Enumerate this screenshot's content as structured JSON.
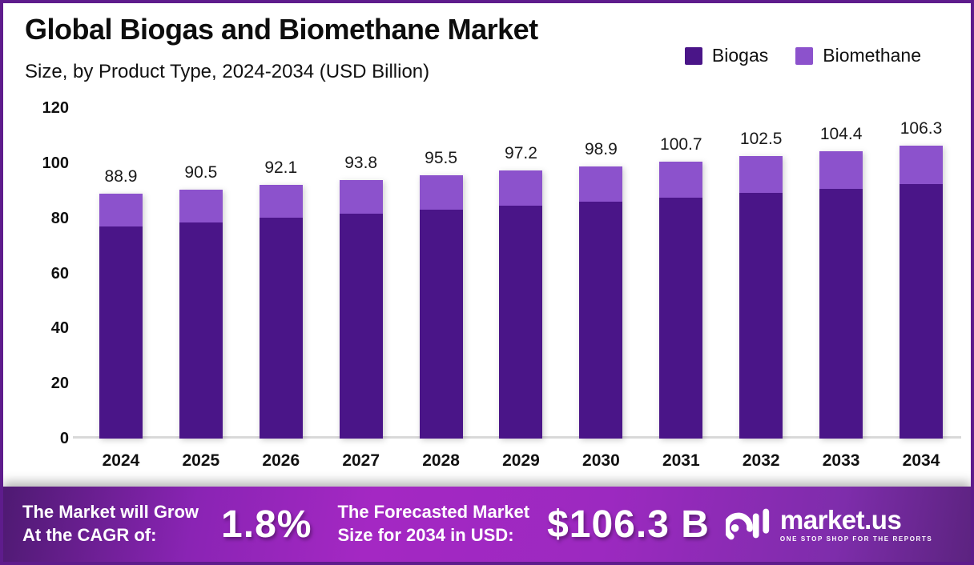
{
  "header": {
    "title": "Global Biogas and Biomethane Market",
    "subtitle": "Size, by Product Type, 2024-2034 (USD Billion)"
  },
  "legend": {
    "items": [
      {
        "label": "Biogas",
        "color": "#4a1588"
      },
      {
        "label": "Biomethane",
        "color": "#8c52cc"
      }
    ]
  },
  "chart_data": {
    "type": "bar",
    "stacked": true,
    "title": "Global Biogas and Biomethane Market Size, by Product Type, 2024-2034 (USD Billion)",
    "categories": [
      "2024",
      "2025",
      "2026",
      "2027",
      "2028",
      "2029",
      "2030",
      "2031",
      "2032",
      "2033",
      "2034"
    ],
    "series": [
      {
        "name": "Biogas",
        "color": "#4a1588",
        "values": [
          77.0,
          78.6,
          80.2,
          81.7,
          83.1,
          84.6,
          86.0,
          87.5,
          89.2,
          90.7,
          92.4
        ]
      },
      {
        "name": "Biomethane",
        "color": "#8c52cc",
        "values": [
          11.9,
          11.9,
          11.9,
          12.1,
          12.4,
          12.6,
          12.9,
          13.2,
          13.3,
          13.7,
          13.9
        ]
      }
    ],
    "totals": [
      88.9,
      90.5,
      92.1,
      93.8,
      95.5,
      97.2,
      98.9,
      100.7,
      102.5,
      104.4,
      106.3
    ],
    "xlabel": "",
    "ylabel": "",
    "ylim": [
      0,
      120
    ],
    "yticks": [
      0,
      20,
      40,
      60,
      80,
      100,
      120
    ],
    "grid": false,
    "legend_position": "top-right",
    "baseline_color": "#d9d9d9"
  },
  "footer": {
    "cagr_label_line1": "The Market will Grow",
    "cagr_label_line2": "At the CAGR of:",
    "cagr_value": "1.8%",
    "forecast_label_line1": "The Forecasted Market",
    "forecast_label_line2": "Size for 2034 in USD:",
    "forecast_value": "$106.3 B",
    "logo_text": "market.us",
    "logo_tagline": "ONE STOP SHOP FOR THE REPORTS",
    "banner_colors": [
      "#4e1a72",
      "#a428c3",
      "#5c2380"
    ]
  }
}
